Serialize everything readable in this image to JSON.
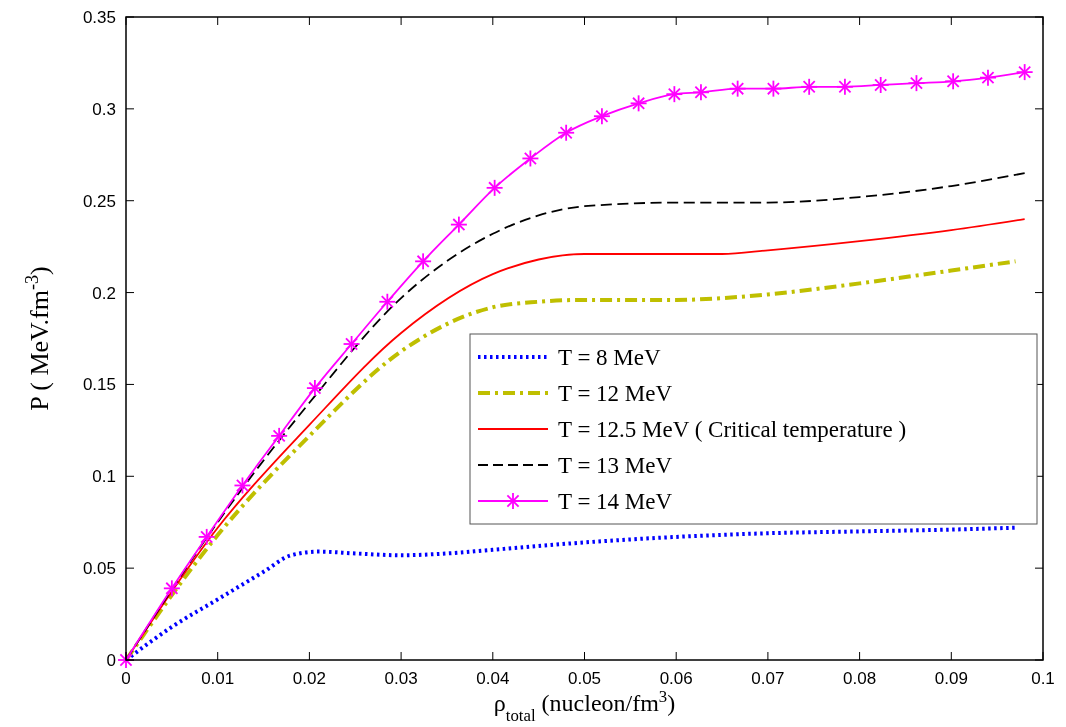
{
  "chart_data": {
    "type": "line",
    "xlabel": "ρ$_{total}$ (nucleon/fm$^{3}$)",
    "ylabel": "P ( MeV.fm$^{-3}$)",
    "xlim": [
      0,
      0.1
    ],
    "ylim": [
      0,
      0.35
    ],
    "xticks": [
      0,
      0.01,
      0.02,
      0.03,
      0.04,
      0.05,
      0.06,
      0.07,
      0.08,
      0.09,
      0.1
    ],
    "yticks": [
      0,
      0.05,
      0.1,
      0.15,
      0.2,
      0.25,
      0.3,
      0.35
    ],
    "grid": false,
    "legend": "right",
    "series": [
      {
        "name": "T = 8 MeV",
        "color": "#0000ff",
        "line_style": "dotted",
        "marker": "none",
        "x": [
          0,
          0.005,
          0.01,
          0.015,
          0.018,
          0.021,
          0.025,
          0.03,
          0.035,
          0.04,
          0.05,
          0.06,
          0.07,
          0.08,
          0.09,
          0.097
        ],
        "values": [
          0,
          0.018,
          0.033,
          0.048,
          0.057,
          0.059,
          0.058,
          0.057,
          0.058,
          0.06,
          0.064,
          0.067,
          0.069,
          0.07,
          0.071,
          0.072
        ]
      },
      {
        "name": "T = 12 MeV",
        "color": "#bfbf00",
        "line_style": "dashdot",
        "marker": "none",
        "x": [
          0,
          0.01,
          0.02,
          0.03,
          0.04,
          0.045,
          0.05,
          0.06,
          0.065,
          0.07,
          0.08,
          0.09,
          0.097
        ],
        "values": [
          0,
          0.068,
          0.122,
          0.168,
          0.192,
          0.195,
          0.196,
          0.196,
          0.197,
          0.199,
          0.205,
          0.212,
          0.217
        ]
      },
      {
        "name": "T = 12.5 MeV ( Critical temperature )",
        "color": "#ff0000",
        "line_style": "solid",
        "marker": "none",
        "x": [
          0,
          0.01,
          0.02,
          0.03,
          0.04,
          0.045,
          0.05,
          0.06,
          0.065,
          0.07,
          0.08,
          0.09,
          0.098
        ],
        "values": [
          0,
          0.072,
          0.128,
          0.178,
          0.21,
          0.218,
          0.221,
          0.221,
          0.221,
          0.223,
          0.228,
          0.234,
          0.24
        ]
      },
      {
        "name": "T = 13 MeV",
        "color": "#000000",
        "line_style": "dashed",
        "marker": "none",
        "x": [
          0,
          0.01,
          0.02,
          0.03,
          0.04,
          0.045,
          0.05,
          0.06,
          0.07,
          0.08,
          0.09,
          0.098
        ],
        "values": [
          0,
          0.075,
          0.14,
          0.197,
          0.232,
          0.242,
          0.247,
          0.249,
          0.249,
          0.252,
          0.258,
          0.265
        ]
      },
      {
        "name": "T = 14 MeV",
        "color": "#ff00ff",
        "line_style": "solid",
        "marker": "cross",
        "x": [
          0,
          0.005,
          0.0088,
          0.0127,
          0.0167,
          0.0206,
          0.0246,
          0.0285,
          0.0324,
          0.0363,
          0.0402,
          0.0441,
          0.048,
          0.0519,
          0.0559,
          0.0598,
          0.0627,
          0.0667,
          0.0706,
          0.0745,
          0.0784,
          0.0823,
          0.0862,
          0.0902,
          0.094,
          0.098
        ],
        "values": [
          0,
          0.039,
          0.067,
          0.095,
          0.122,
          0.148,
          0.172,
          0.195,
          0.217,
          0.237,
          0.257,
          0.273,
          0.287,
          0.296,
          0.303,
          0.308,
          0.309,
          0.311,
          0.311,
          0.312,
          0.312,
          0.313,
          0.314,
          0.315,
          0.317,
          0.32
        ]
      }
    ]
  }
}
